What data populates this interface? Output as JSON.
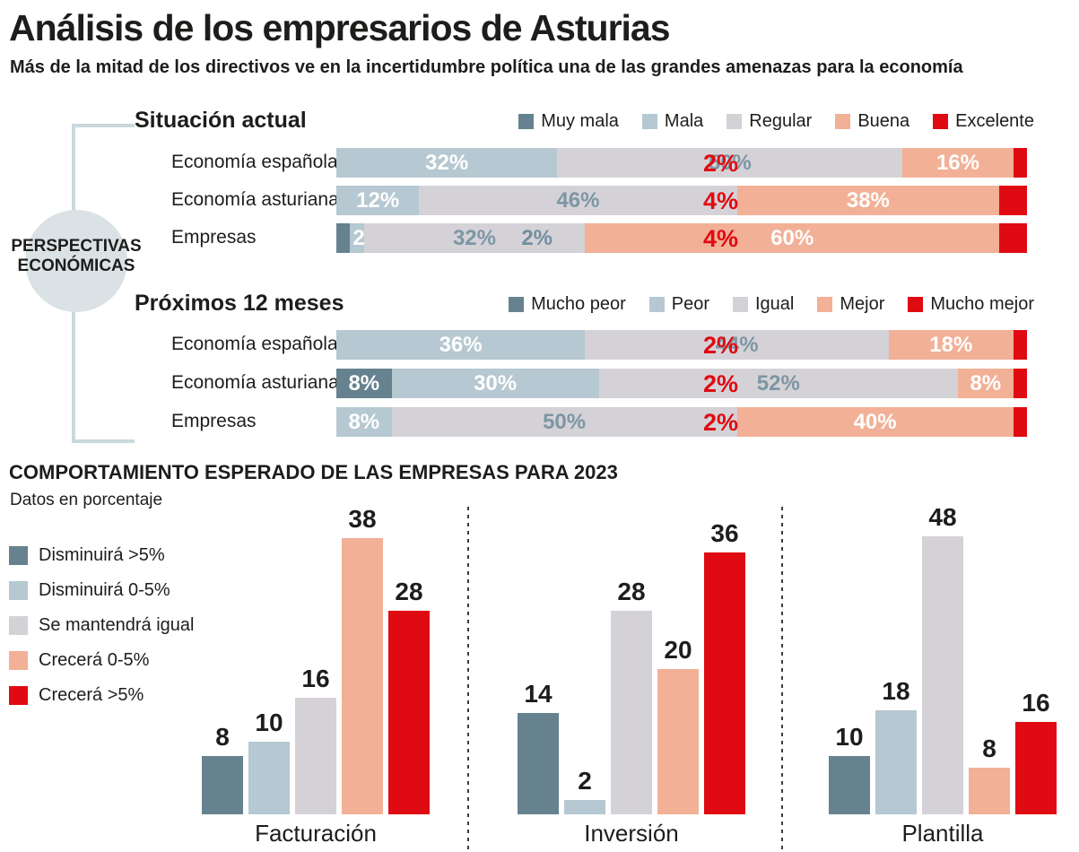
{
  "header": {
    "title": "Análisis de los empresarios de Asturias",
    "subtitle": "Más de la mitad de los directivos ve en la incertidumbre política una de las grandes amenazas para la economía"
  },
  "perspectivas": {
    "side_label_line1": "PERSPECTIVAS",
    "side_label_line2": "ECONÓMICAS"
  },
  "palette": [
    "#66828F",
    "#B6C8D1",
    "#D5D2D7",
    "#F2B097",
    "#E00A12"
  ],
  "text_colors": {
    "dark": "#1D1D1B",
    "white": "#FFFFFF",
    "slate": "#7C96A4",
    "outside_left_slate": "#6F8FA0",
    "red": "#E00A12"
  },
  "decor_colors": {
    "bracket_line": "#CBD8DE",
    "circle_fill": "#DBE2E6",
    "separator": "#3C3C3C"
  },
  "chart_data": [
    {
      "type": "stacked-bar-horizontal",
      "title": "Situación actual",
      "legend": [
        "Muy mala",
        "Mala",
        "Regular",
        "Buena",
        "Excelente"
      ],
      "legend_position": "top-right",
      "xlim": [
        0,
        100
      ],
      "unit": "%",
      "categories": [
        "Economía española",
        "Economía asturiana",
        "Empresas"
      ],
      "series": [
        {
          "name": "Muy mala",
          "values": [
            0,
            0,
            2
          ]
        },
        {
          "name": "Mala",
          "values": [
            32,
            12,
            2
          ]
        },
        {
          "name": "Regular",
          "values": [
            50,
            46,
            32
          ]
        },
        {
          "name": "Buena",
          "values": [
            16,
            38,
            60
          ]
        },
        {
          "name": "Excelente",
          "values": [
            2,
            4,
            4
          ]
        }
      ]
    },
    {
      "type": "stacked-bar-horizontal",
      "title": "Próximos 12 meses",
      "legend": [
        "Mucho peor",
        "Peor",
        "Igual",
        "Mejor",
        "Mucho mejor"
      ],
      "legend_position": "top-right",
      "xlim": [
        0,
        100
      ],
      "unit": "%",
      "categories": [
        "Economía española",
        "Economía asturiana",
        "Empresas"
      ],
      "series": [
        {
          "name": "Mucho peor",
          "values": [
            0,
            8,
            0
          ]
        },
        {
          "name": "Peor",
          "values": [
            36,
            30,
            8
          ]
        },
        {
          "name": "Igual",
          "values": [
            44,
            52,
            50
          ]
        },
        {
          "name": "Mejor",
          "values": [
            18,
            8,
            40
          ]
        },
        {
          "name": "Mucho mejor",
          "values": [
            2,
            2,
            2
          ]
        }
      ]
    },
    {
      "type": "bar",
      "title": "COMPORTAMIENTO ESPERADO DE LAS EMPRESAS PARA 2023",
      "subtitle": "Datos en porcentaje",
      "legend": [
        "Disminuirá >5%",
        "Disminuirá 0-5%",
        "Se mantendrá igual",
        "Crecerá 0-5%",
        "Crecerá >5%"
      ],
      "legend_position": "left",
      "ylim": [
        0,
        48
      ],
      "grid": false,
      "categories": [
        "Facturación",
        "Inversión",
        "Plantilla"
      ],
      "series": [
        {
          "name": "Disminuirá >5%",
          "values": [
            8,
            14,
            10
          ]
        },
        {
          "name": "Disminuirá 0-5%",
          "values": [
            10,
            2,
            18
          ]
        },
        {
          "name": "Se mantendrá igual",
          "values": [
            16,
            28,
            48
          ]
        },
        {
          "name": "Crecerá 0-5%",
          "values": [
            38,
            20,
            8
          ]
        },
        {
          "name": "Crecerá >5%",
          "values": [
            28,
            36,
            16
          ]
        }
      ]
    }
  ]
}
